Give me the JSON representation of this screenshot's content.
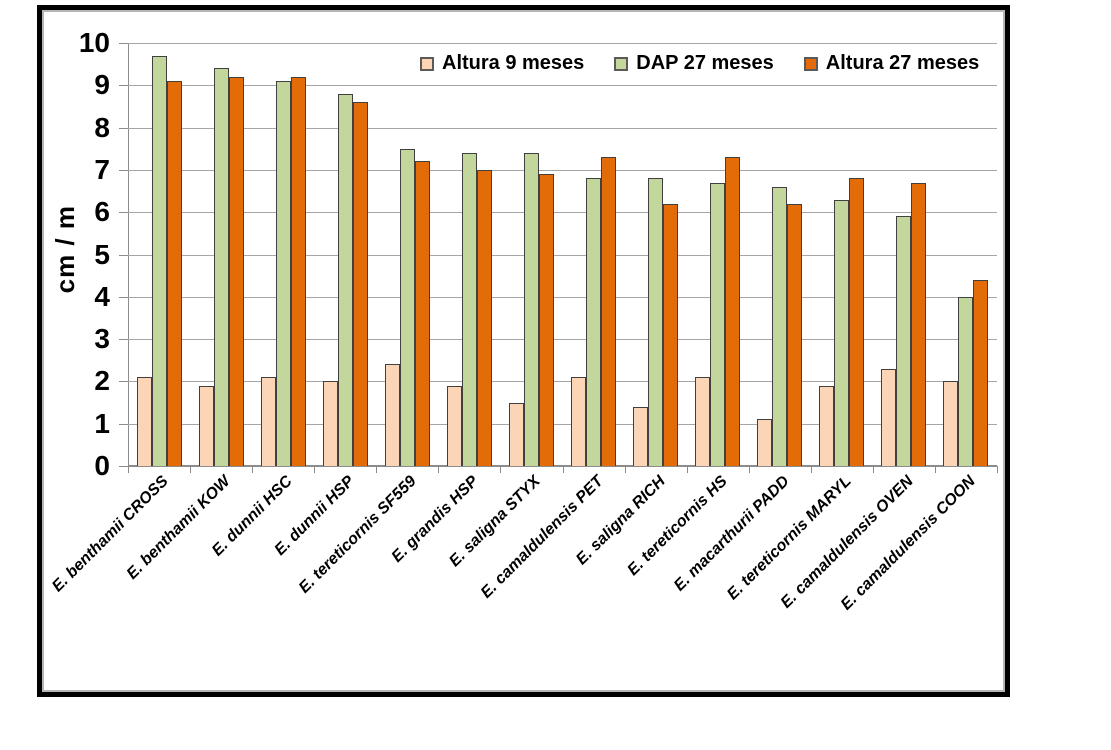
{
  "chart_data": {
    "type": "bar",
    "title": "",
    "xlabel": "",
    "ylabel": "cm / m",
    "ylim": [
      0,
      10
    ],
    "ytick_step": 1,
    "grid": "horizontal",
    "legend_position": "top-center",
    "categories": [
      "E. benthamii CROSS",
      "E. benthamii KOW",
      "E. dunnii HSC",
      "E. dunnii HSP",
      "E. tereticornis SF559",
      "E. grandis HSP",
      "E. saligna STYX",
      "E. camaldulensis PET",
      "E. saligna RICH",
      "E. tereticornis HS",
      "E. macarthurii PADD",
      "E. tereticornis MARYL",
      "E. camaldulensis OVEN",
      "E. camaldulensis COON"
    ],
    "series": [
      {
        "name": "Altura 9 meses",
        "color": "#FBD5B5",
        "values": [
          2.1,
          1.9,
          2.1,
          2.0,
          2.4,
          1.9,
          1.5,
          2.1,
          1.4,
          2.1,
          1.1,
          1.9,
          2.3,
          2.0
        ]
      },
      {
        "name": "DAP 27 meses",
        "color": "#C3D69B",
        "values": [
          9.7,
          9.4,
          9.1,
          8.8,
          7.5,
          7.4,
          7.4,
          6.8,
          6.8,
          6.7,
          6.6,
          6.3,
          5.9,
          4.0
        ]
      },
      {
        "name": "Altura 27 meses",
        "color": "#E36C09",
        "values": [
          9.1,
          9.2,
          9.2,
          8.6,
          7.2,
          7.0,
          6.9,
          7.3,
          6.2,
          7.3,
          6.2,
          6.8,
          6.7,
          4.4
        ]
      }
    ],
    "colors": {
      "gridline": "#a6a6a6",
      "axis": "#8c8c8c",
      "bar_border": "#404040",
      "frame_border": "#000000",
      "frame_inner_shadow": "#b5b5b5",
      "background": "#ffffff"
    }
  }
}
